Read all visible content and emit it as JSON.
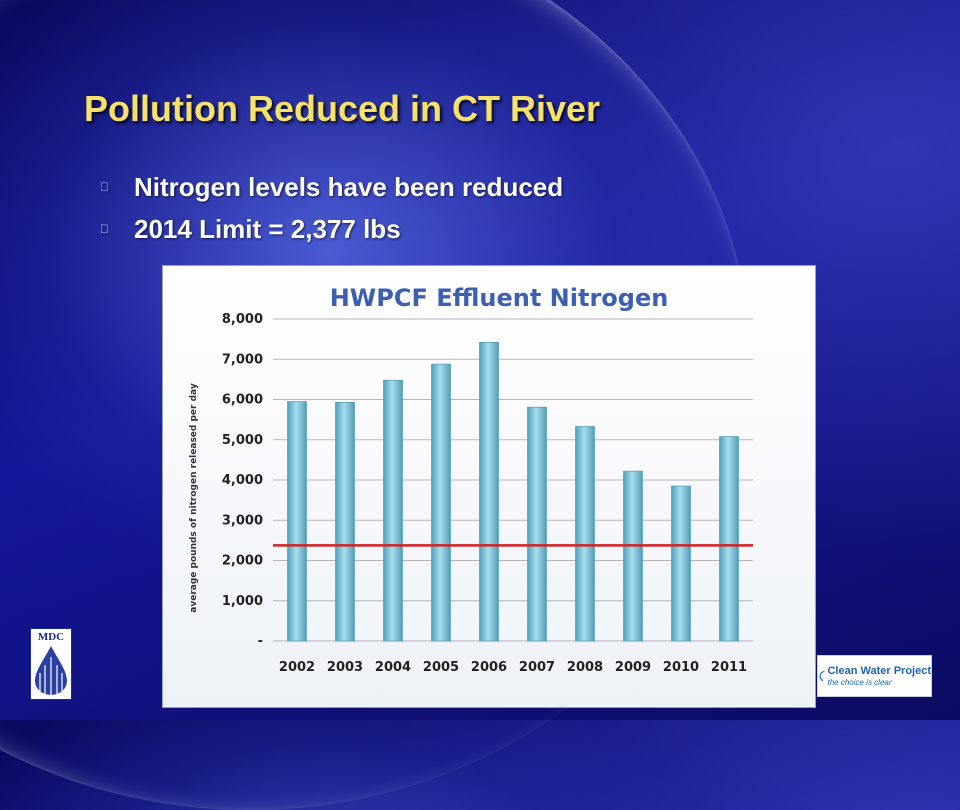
{
  "slide": {
    "title": "Pollution Reduced in CT River",
    "bullets": [
      "Nitrogen levels have been reduced",
      "2014 Limit = 2,377 lbs"
    ],
    "bullet_glyph": "",
    "colors": {
      "title": "#f6e26a",
      "text": "#ffffff",
      "background": "#13148c"
    }
  },
  "logos": {
    "mdc": {
      "label": "MDC"
    },
    "clean_water": {
      "name": "Clean Water Project",
      "tagline": "the choice is clear"
    }
  },
  "chart_data": {
    "type": "bar",
    "title": "HWPCF Effluent Nitrogen",
    "xlabel": "",
    "ylabel": "average pounds of nitrogen released per day",
    "categories": [
      "2002",
      "2003",
      "2004",
      "2005",
      "2006",
      "2007",
      "2008",
      "2009",
      "2010",
      "2011"
    ],
    "values": [
      5950,
      5930,
      6480,
      6880,
      7420,
      5810,
      5330,
      4220,
      3850,
      5080
    ],
    "ylim": [
      0,
      8000
    ],
    "ytick_values": [
      0,
      1000,
      2000,
      3000,
      4000,
      5000,
      6000,
      7000,
      8000
    ],
    "ytick_labels": [
      "-",
      "1,000",
      "2,000",
      "3,000",
      "4,000",
      "5,000",
      "6,000",
      "7,000",
      "8,000"
    ],
    "reference_line": {
      "value": 2377,
      "color": "#d42020"
    },
    "grid": true,
    "colors": {
      "bar": "#7fc3d8",
      "title": "#3d5fb0"
    }
  }
}
